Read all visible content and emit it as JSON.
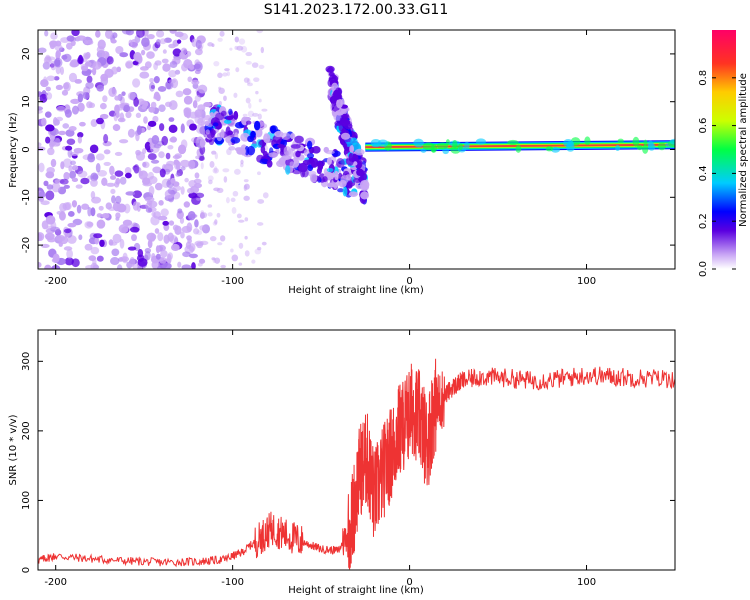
{
  "title": "S141.2023.172.00.33.G11",
  "colors": {
    "snr_line": "#ee3333",
    "spectral_core": "#e8433a",
    "spectral_low": "#c9a6f5",
    "spectral_mid": "#6a1ee0",
    "axis": "#000000"
  },
  "chart_data": [
    {
      "type": "heatmap",
      "xlabel": "Height of straight line (km)",
      "ylabel": "Frequency (Hz)",
      "xlim": [
        -210,
        150
      ],
      "ylim": [
        -25,
        25
      ],
      "xticks": [
        -200,
        -100,
        0,
        100
      ],
      "yticks": [
        -20,
        -10,
        0,
        10,
        20
      ],
      "xtick_labels": [
        "-200",
        "-100",
        "0",
        "100"
      ],
      "ytick_labels": [
        "-20",
        "-10",
        "0",
        "10",
        "20"
      ],
      "colorbar": {
        "label": "Normalized spectral amplitude",
        "range": [
          0,
          1
        ],
        "ticks": [
          0.0,
          0.2,
          0.4,
          0.6,
          0.8
        ],
        "tick_labels": [
          "0.0",
          "0.2",
          "0.4",
          "0.6",
          "0.8"
        ],
        "colormap": [
          "#ffffff",
          "#c9a6f5",
          "#5a00e0",
          "#0000ff",
          "#00ccff",
          "#00ff44",
          "#ccff00",
          "#ffcc00",
          "#ff3322",
          "#ff0066"
        ]
      },
      "features": {
        "noise_region_x": [
          -210,
          -115
        ],
        "chirp_segments": [
          {
            "x": [
              -115,
              -30
            ],
            "freq": [
              6,
              -6
            ],
            "amplitude": 0.3
          },
          {
            "x": [
              -45,
              -25
            ],
            "freq": [
              14,
              -8
            ],
            "amplitude": 0.15
          }
        ],
        "carrier": {
          "x": [
            -25,
            150
          ],
          "freq": [
            0.5,
            1.0
          ],
          "amplitude": 0.95
        }
      }
    },
    {
      "type": "line",
      "xlabel": "Height of straight line (km)",
      "ylabel": "SNR (10 * v/v)",
      "xlim": [
        -210,
        150
      ],
      "ylim": [
        0,
        345
      ],
      "xticks": [
        -200,
        -100,
        0,
        100
      ],
      "yticks": [
        0,
        100,
        200,
        300
      ],
      "xtick_labels": [
        "-200",
        "-100",
        "0",
        "100"
      ],
      "ytick_labels": [
        "0",
        "100",
        "200",
        "300"
      ],
      "series": [
        {
          "x": [
            -210,
            -200,
            -180,
            -160,
            -140,
            -120,
            -105,
            -95,
            -85,
            -78,
            -70,
            -60,
            -50,
            -40,
            -33,
            -28,
            -24,
            -20,
            -15,
            -10,
            -6,
            -2,
            2,
            6,
            10,
            14,
            18,
            24,
            30,
            40,
            55,
            70,
            85,
            100,
            115,
            130,
            150
          ],
          "y": [
            14,
            20,
            16,
            13,
            11,
            12,
            15,
            25,
            45,
            60,
            50,
            40,
            30,
            28,
            65,
            145,
            160,
            105,
            140,
            170,
            200,
            215,
            235,
            215,
            180,
            235,
            245,
            262,
            272,
            278,
            276,
            272,
            275,
            280,
            278,
            276,
            275
          ]
        }
      ]
    }
  ]
}
